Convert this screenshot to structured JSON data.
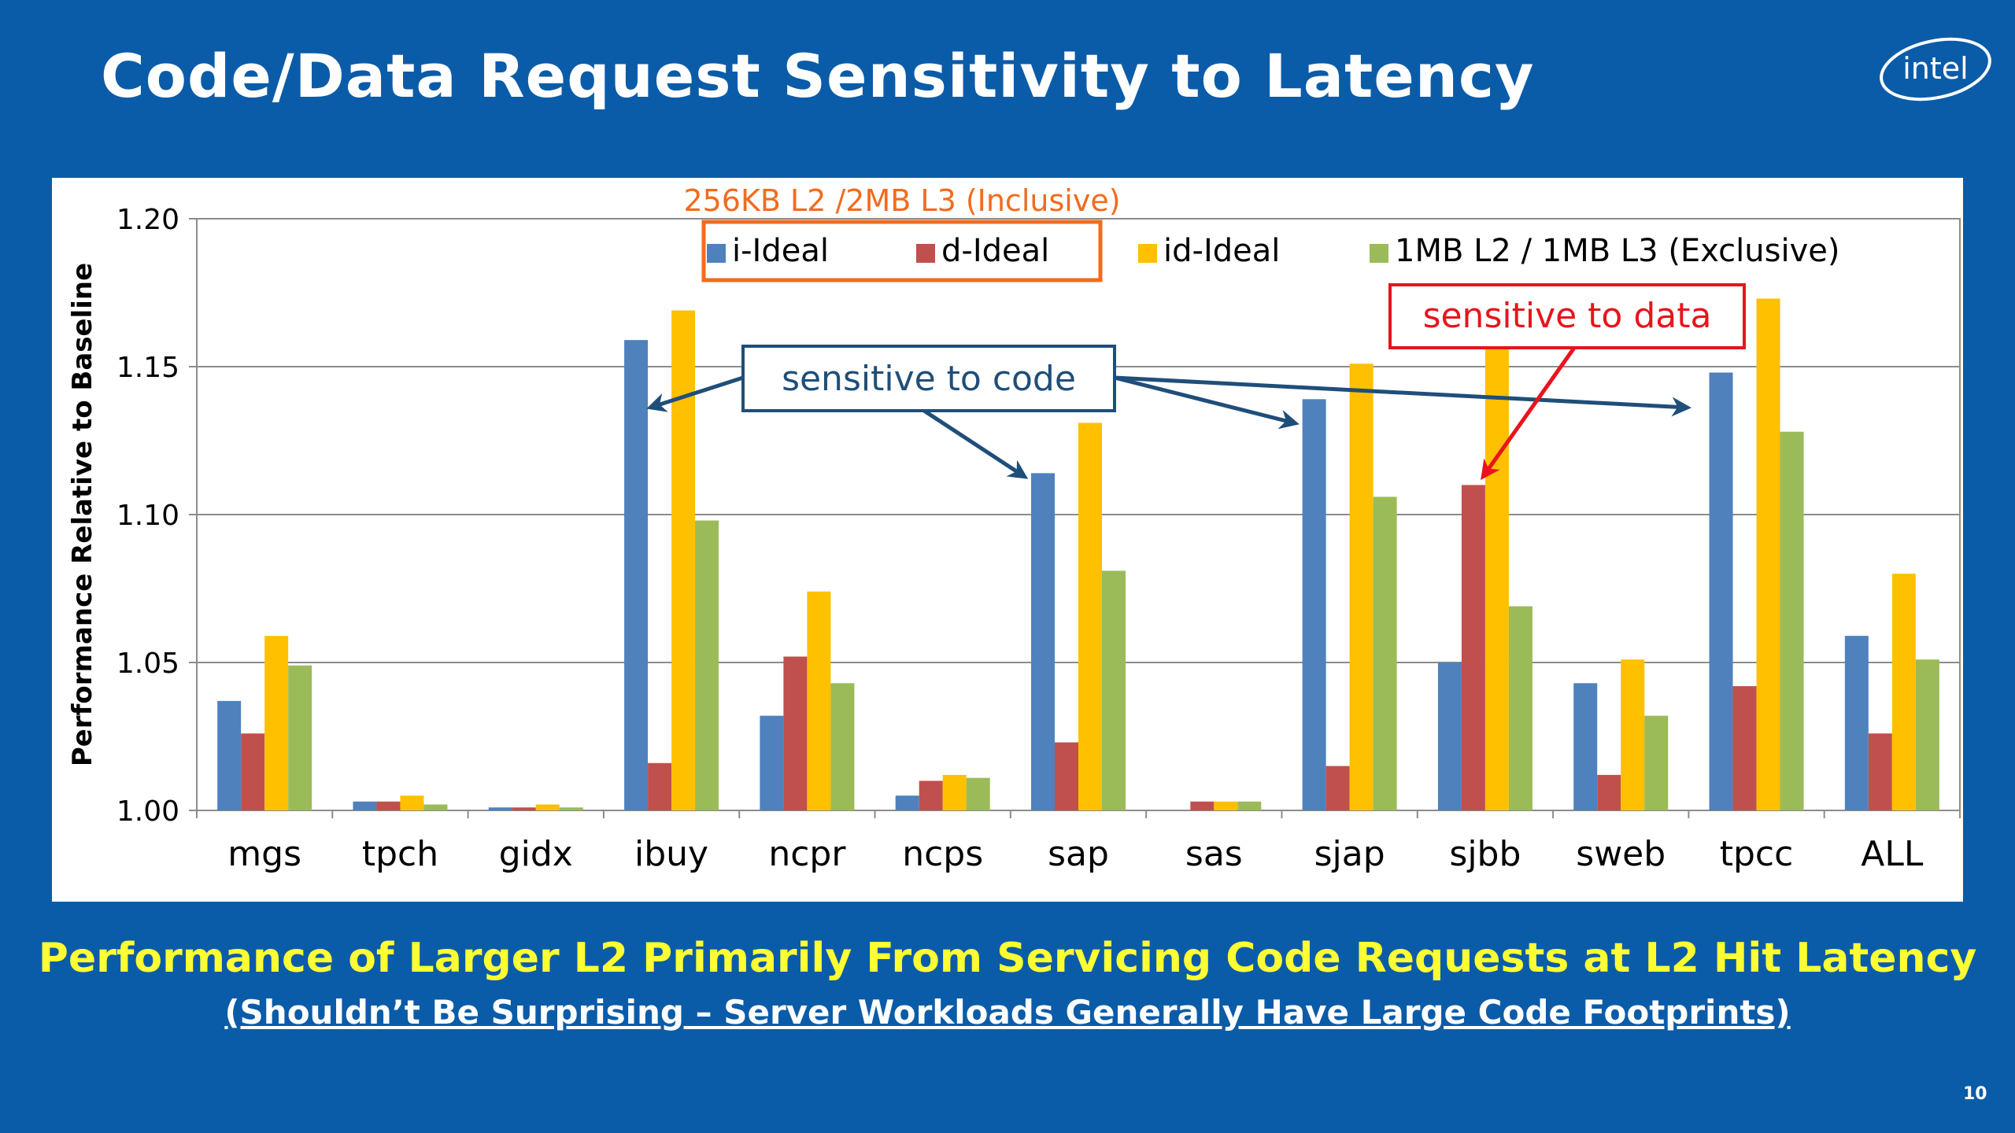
{
  "slide": {
    "title": "Code/Data Request Sensitivity to Latency",
    "logo_text": "intel",
    "footer_main": "Performance of Larger L2 Primarily From Servicing Code Requests at L2 Hit Latency",
    "footer_sub": "(Shouldn’t Be Surprising – Server Workloads Generally Have Large Code Footprints)",
    "page_number": "10"
  },
  "colors": {
    "background": "#0b5ca8",
    "i_ideal": "#4f81bd",
    "d_ideal": "#c0504d",
    "id_ideal": "#ffc000",
    "exclusive": "#9bbb59",
    "inclusive_box": "#f26b1d",
    "code_callout": "#1f4e79",
    "data_callout": "#e8141c"
  },
  "chart_data": {
    "type": "bar",
    "ylabel": "Performance Relative to Baseline",
    "ylim": [
      1.0,
      1.2
    ],
    "yticks": [
      "1.00",
      "1.05",
      "1.10",
      "1.15",
      "1.20"
    ],
    "ytick_values": [
      1.0,
      1.05,
      1.1,
      1.15,
      1.2
    ],
    "grid": true,
    "legend_group_label": "256KB L2 /2MB L3 (Inclusive)",
    "categories": [
      "mgs",
      "tpch",
      "gidx",
      "ibuy",
      "ncpr",
      "ncps",
      "sap",
      "sas",
      "sjap",
      "sjbb",
      "sweb",
      "tpcc",
      "ALL"
    ],
    "series": [
      {
        "name": "i-Ideal",
        "color": "#4f81bd",
        "values": [
          1.037,
          1.003,
          1.001,
          1.159,
          1.032,
          1.005,
          1.114,
          1.0,
          1.139,
          1.05,
          1.043,
          1.148,
          1.059
        ]
      },
      {
        "name": "d-Ideal",
        "color": "#c0504d",
        "values": [
          1.026,
          1.003,
          1.001,
          1.016,
          1.052,
          1.01,
          1.023,
          1.003,
          1.015,
          1.11,
          1.012,
          1.042,
          1.026
        ]
      },
      {
        "name": "id-Ideal",
        "color": "#ffc000",
        "values": [
          1.059,
          1.005,
          1.002,
          1.169,
          1.074,
          1.012,
          1.131,
          1.003,
          1.151,
          1.161,
          1.051,
          1.173,
          1.08
        ]
      },
      {
        "name": "1MB L2 / 1MB L3 (Exclusive)",
        "color": "#9bbb59",
        "values": [
          1.049,
          1.002,
          1.001,
          1.098,
          1.043,
          1.011,
          1.081,
          1.003,
          1.106,
          1.069,
          1.032,
          1.128,
          1.051
        ]
      }
    ],
    "annotations": [
      {
        "text": "sensitive to code",
        "points_to": [
          "ibuy i-Ideal",
          "sap i-Ideal",
          "sjap i-Ideal",
          "tpcc i-Ideal"
        ]
      },
      {
        "text": "sensitive to data",
        "points_to": [
          "sjbb d-Ideal"
        ]
      }
    ]
  }
}
